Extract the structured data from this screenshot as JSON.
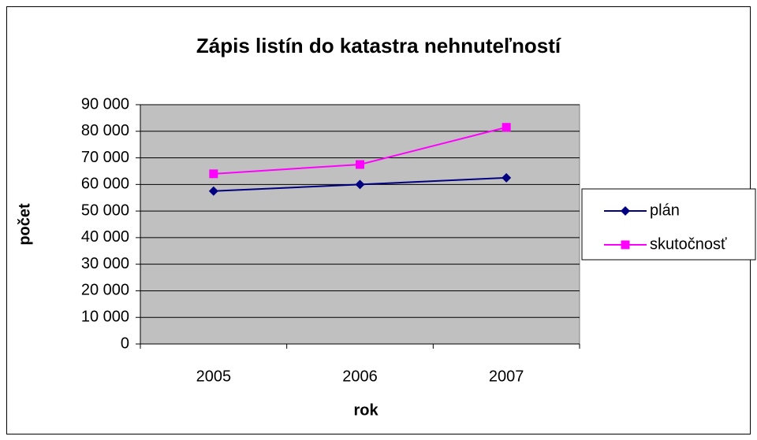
{
  "chart_data": {
    "type": "line",
    "title": "Zápis listín do katastra nehnuteľností",
    "x_label": "rok",
    "y_label": "počet",
    "categories": [
      "2005",
      "2006",
      "2007"
    ],
    "series": [
      {
        "name": "plán",
        "color": "#000080",
        "marker": "diamond",
        "values": [
          57500,
          60000,
          62500
        ]
      },
      {
        "name": "skutočnosť",
        "color": "#ff00ff",
        "marker": "square",
        "values": [
          64000,
          67500,
          81500
        ]
      }
    ],
    "ylim": [
      0,
      90000
    ],
    "yticks": [
      0,
      {
        "value": 10000,
        "label": "10 000"
      },
      {
        "value": 20000,
        "label": "20 000"
      },
      {
        "value": 30000,
        "label": "30 000"
      },
      {
        "value": 40000,
        "label": "40 000"
      },
      {
        "value": 50000,
        "label": "50 000"
      },
      {
        "value": 60000,
        "label": "60 000"
      },
      {
        "value": 70000,
        "label": "70 000"
      },
      {
        "value": 80000,
        "label": "80 000"
      },
      {
        "value": 90000,
        "label": "90 000"
      }
    ],
    "grid": true,
    "plot_background": "#c0c0c0",
    "legend": "right"
  }
}
